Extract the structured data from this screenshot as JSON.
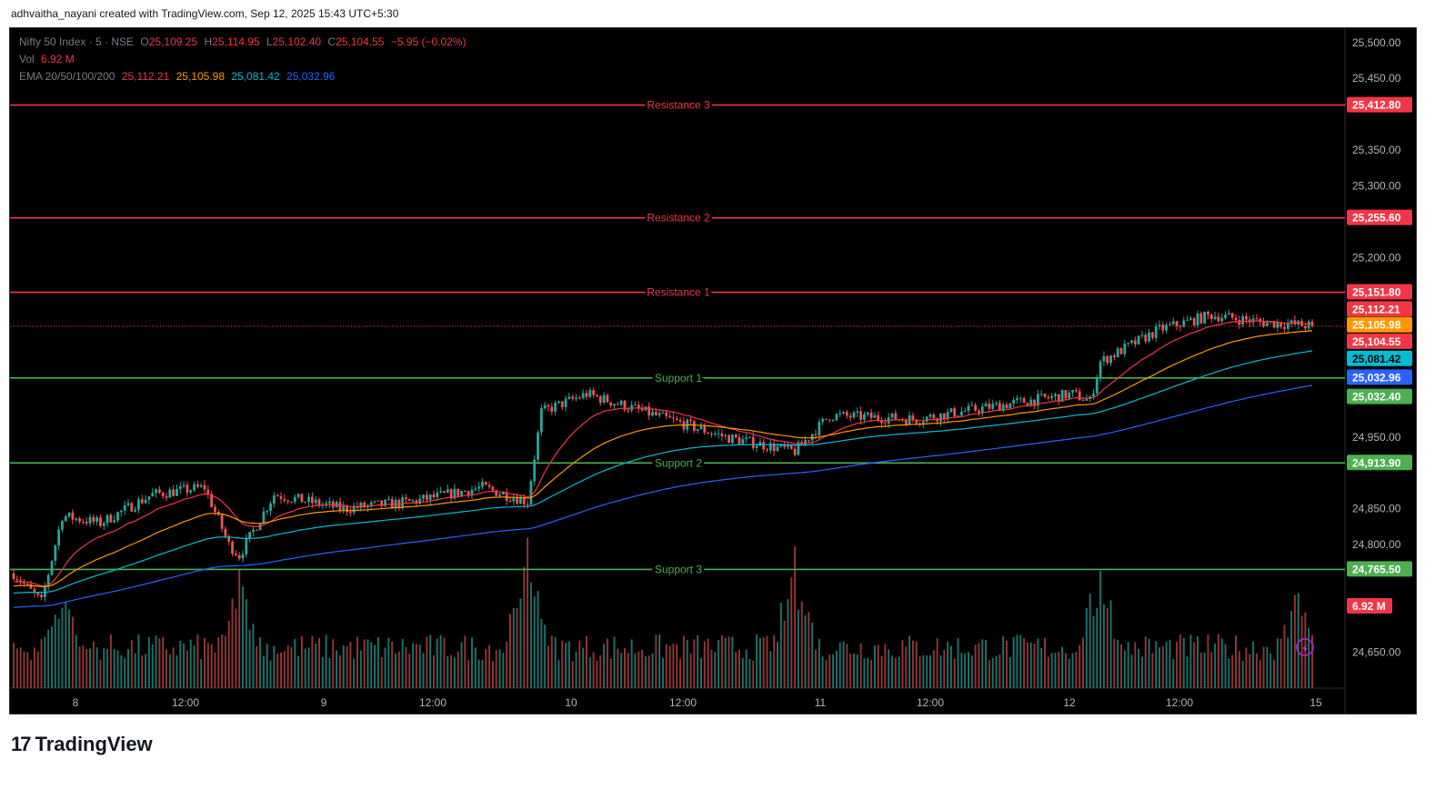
{
  "caption": "adhvaitha_nayani created with TradingView.com, Sep 12, 2025 15:43 UTC+5:30",
  "brand": "TradingView",
  "legend": {
    "symbol": "Nifty 50 Index · 5 · NSE",
    "open_label": "O",
    "open": "25,109.25",
    "high_label": "H",
    "high": "25,114.95",
    "low_label": "L",
    "low": "25,102.40",
    "close_label": "C",
    "close": "25,104.55",
    "change": "−5.95 (−0.02%)",
    "vol_label": "Vol",
    "vol": "6.92 M",
    "ema_label": "EMA 20/50/100/200",
    "ema20": "25,112.21",
    "ema50": "25,105.98",
    "ema100": "25,081.42",
    "ema200": "25,032.96"
  },
  "colors": {
    "up": "#26a69a",
    "down": "#ef5350",
    "resistance": "#f23645",
    "support": "#4caf50",
    "ema20": "#f23645",
    "ema50": "#ff9800",
    "ema100": "#00bcd4",
    "ema200": "#2962ff",
    "price_tag": "#f23645",
    "vol_tag": "#f23645"
  },
  "chart_data": {
    "type": "candlestick",
    "symbol": "Nifty 50 Index",
    "interval": "5",
    "exchange": "NSE",
    "ylim": [
      24600,
      25520
    ],
    "y_ticks": [
      25500,
      25450,
      25350,
      25300,
      25200,
      24950,
      24850,
      24800,
      24650
    ],
    "x_ticks": [
      "8",
      "12:00",
      "9",
      "12:00",
      "10",
      "12:00",
      "11",
      "12:00",
      "12",
      "12:00",
      "15"
    ],
    "sessions": [
      "8",
      "9",
      "10",
      "11",
      "12"
    ],
    "levels": [
      {
        "label": "Resistance 3",
        "value": 25412.8,
        "kind": "resistance"
      },
      {
        "label": "Resistance 2",
        "value": 25255.6,
        "kind": "resistance"
      },
      {
        "label": "Resistance 1",
        "value": 25151.8,
        "kind": "resistance"
      },
      {
        "label": "Support 1",
        "value": 25032.4,
        "kind": "support"
      },
      {
        "label": "Support 2",
        "value": 24913.9,
        "kind": "support"
      },
      {
        "label": "Support 3",
        "value": 24765.5,
        "kind": "support"
      }
    ],
    "price_tags": [
      {
        "label": "25,412.80",
        "value": 25412.8,
        "color": "#f23645"
      },
      {
        "label": "25,255.60",
        "value": 25255.6,
        "color": "#f23645"
      },
      {
        "label": "25,151.80",
        "value": 25151.8,
        "color": "#f23645"
      },
      {
        "label": "25,112.21",
        "value": 25128.0,
        "color": "#f23645"
      },
      {
        "label": "25,105.98",
        "value": 25105.98,
        "color": "#ff9800"
      },
      {
        "label": "25,104.55",
        "value": 25083.0,
        "color": "#f23645"
      },
      {
        "label": "25,081.42",
        "value": 25059.0,
        "color": "#00bcd4"
      },
      {
        "label": "25,032.96",
        "value": 25032.96,
        "color": "#2962ff"
      },
      {
        "label": "25,032.40",
        "value": 25006.0,
        "color": "#4caf50"
      },
      {
        "label": "24,913.90",
        "value": 24913.9,
        "color": "#4caf50"
      },
      {
        "label": "24,765.50",
        "value": 24765.5,
        "color": "#4caf50"
      }
    ],
    "vol_tag": "6.92 M",
    "last_price": 25104.55,
    "path_anchors": [
      [
        0,
        24760
      ],
      [
        8,
        24720
      ],
      [
        14,
        24840
      ],
      [
        25,
        24830
      ],
      [
        40,
        24870
      ],
      [
        55,
        24880
      ],
      [
        62,
        24800
      ],
      [
        65,
        24785
      ],
      [
        75,
        24870
      ],
      [
        95,
        24850
      ],
      [
        115,
        24860
      ],
      [
        135,
        24880
      ],
      [
        148,
        24860
      ],
      [
        152,
        24985
      ],
      [
        165,
        25010
      ],
      [
        185,
        24980
      ],
      [
        205,
        24950
      ],
      [
        225,
        24930
      ],
      [
        235,
        24980
      ],
      [
        260,
        24975
      ],
      [
        285,
        24995
      ],
      [
        305,
        25010
      ],
      [
        310,
        25000
      ],
      [
        313,
        25055
      ],
      [
        330,
        25100
      ],
      [
        345,
        25120
      ],
      [
        360,
        25110
      ],
      [
        374,
        25105
      ]
    ],
    "volume_peaks": [
      [
        14,
        0.7
      ],
      [
        65,
        0.85
      ],
      [
        148,
        1.0
      ],
      [
        225,
        0.95
      ],
      [
        313,
        0.9
      ],
      [
        370,
        0.75
      ]
    ]
  }
}
